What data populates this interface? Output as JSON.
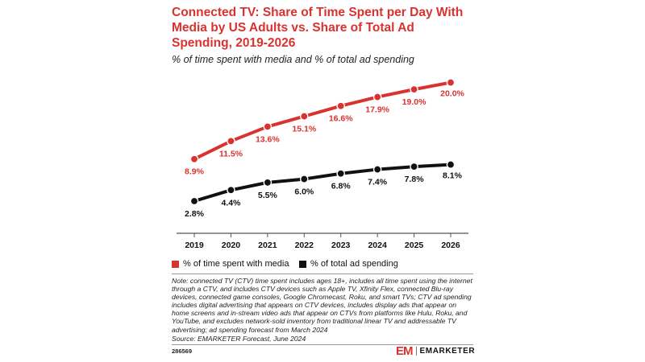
{
  "header": {
    "title": "Connected TV: Share of Time Spent per Day With Media by US Adults vs. Share of Total Ad Spending, 2019-2026",
    "subtitle": "% of time spent with media and % of total ad spending"
  },
  "chart_data": {
    "type": "line",
    "categories": [
      "2019",
      "2020",
      "2021",
      "2022",
      "2023",
      "2024",
      "2025",
      "2026"
    ],
    "series": [
      {
        "name": "% of time spent with media",
        "color": "#d9322f",
        "values": [
          8.9,
          11.5,
          13.6,
          15.1,
          16.6,
          17.9,
          19.0,
          20.0
        ],
        "labels": [
          "8.9%",
          "11.5%",
          "13.6%",
          "15.1%",
          "16.6%",
          "17.9%",
          "19.0%",
          "20.0%"
        ]
      },
      {
        "name": "% of total ad spending",
        "color": "#111111",
        "values": [
          2.8,
          4.4,
          5.5,
          6.0,
          6.8,
          7.4,
          7.8,
          8.1
        ],
        "labels": [
          "2.8%",
          "4.4%",
          "5.5%",
          "6.0%",
          "6.8%",
          "7.4%",
          "7.8%",
          "8.1%"
        ]
      }
    ],
    "ylim": [
      0,
      21
    ],
    "grid": false,
    "legend_position": "bottom-left"
  },
  "legend": {
    "items": [
      {
        "label": "% of time spent with media",
        "color": "#d9322f"
      },
      {
        "label": "% of total ad spending",
        "color": "#111111"
      }
    ]
  },
  "footer": {
    "note": "Note: connected TV (CTV) time spent includes ages 18+, includes all time spent using the internet through a CTV, and includes CTV devices such as Apple TV, Xfinity Flex, connected Blu-ray devices, connected game consoles, Google Chromecast, Roku, and smart TVs; CTV ad spending includes digital advertising that appears on CTV devices, includes display ads that appear on home screens and in-stream video ads that appear on CTVs from platforms like Hulu, Roku, and YouTube, and excludes network-sold inventory from traditional linear TV and addressable TV advertising; ad spending forecast from March 2024",
    "source": "Source: EMARKETER Forecast, June 2024",
    "chart_id": "286569",
    "logo_mark": "EM",
    "logo_text": "EMARKETER"
  }
}
